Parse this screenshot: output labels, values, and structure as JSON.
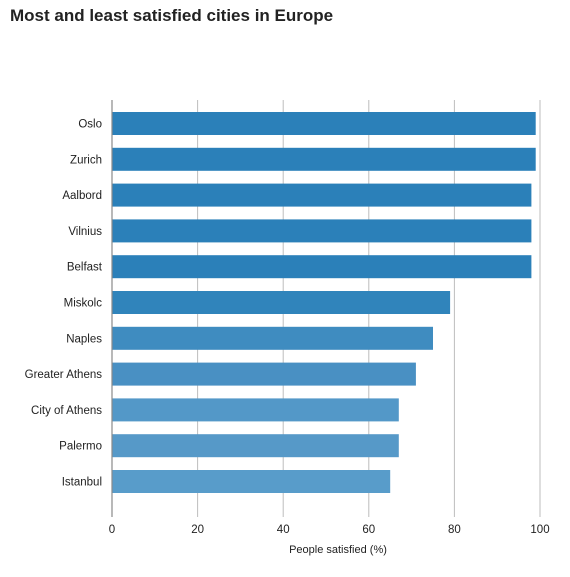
{
  "chart_data": {
    "type": "bar",
    "orientation": "horizontal",
    "title": "Most and least satisfied cities in Europe",
    "xlabel": "People satisfied (%)",
    "ylabel": "",
    "xlim": [
      0,
      100
    ],
    "xticks": [
      0,
      20,
      40,
      60,
      80,
      100
    ],
    "grid": true,
    "categories": [
      "Oslo",
      "Zurich",
      "Aalbord",
      "Vilnius",
      "Belfast",
      "Miskolc",
      "Naples",
      "Greater Athens",
      "City of Athens",
      "Palermo",
      "Istanbul"
    ],
    "values": [
      99,
      99,
      98,
      98,
      98,
      79,
      75,
      71,
      67,
      67,
      65
    ],
    "colors": [
      "#2b80b9",
      "#2b80b9",
      "#2b80b9",
      "#2b80b9",
      "#2b80b9",
      "#3084bb",
      "#3f8cc0",
      "#4990c3",
      "#5398c8",
      "#5699c8",
      "#589cca"
    ]
  }
}
